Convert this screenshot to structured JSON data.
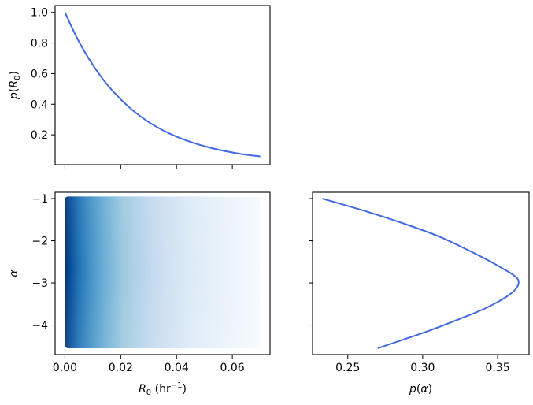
{
  "chart_data": [
    {
      "panel": "top-left",
      "type": "line",
      "xlabel": "",
      "ylabel": "p(R0)",
      "xlim": [
        -0.0035,
        0.0735
      ],
      "ylim": [
        0.005,
        1.045
      ],
      "xticks": [
        0.0,
        0.02,
        0.04,
        0.06
      ],
      "show_xtick_labels": false,
      "yticks": [
        0.2,
        0.4,
        0.6,
        0.8,
        1.0
      ],
      "ytick_labels": [
        "0.2",
        "0.4",
        "0.6",
        "0.8",
        "1.0"
      ],
      "series": [
        {
          "color": "#4169e1",
          "x": [
            0.0,
            0.005,
            0.01,
            0.015,
            0.02,
            0.025,
            0.03,
            0.035,
            0.04,
            0.045,
            0.05,
            0.055,
            0.06,
            0.065,
            0.07
          ],
          "y": [
            1.0,
            0.81,
            0.657,
            0.532,
            0.432,
            0.35,
            0.284,
            0.231,
            0.188,
            0.154,
            0.126,
            0.103,
            0.085,
            0.07,
            0.059
          ]
        }
      ],
      "grid": false
    },
    {
      "panel": "bottom-left",
      "type": "heatmap",
      "xlabel": "R0 (hr⁻¹)",
      "ylabel": "α",
      "xlim": [
        -0.0035,
        0.0735
      ],
      "ylim": [
        -4.7,
        -0.85
      ],
      "xticks": [
        0.0,
        0.02,
        0.04,
        0.06
      ],
      "xtick_labels": [
        "0.00",
        "0.02",
        "0.04",
        "0.06"
      ],
      "yticks": [
        -4,
        -3,
        -2,
        -1
      ],
      "ytick_labels": [
        "−4",
        "−3",
        "−2",
        "−1"
      ],
      "x_range": [
        0.0,
        0.07
      ],
      "y_range": [
        -4.55,
        -0.95
      ],
      "colormap": "Blues",
      "colormap_dark": "#08306b",
      "colormap_light": "#f7fbff",
      "description_values": {
        "R0_peak": 0.0,
        "alpha_peak": -2.9
      },
      "grid": false
    },
    {
      "panel": "bottom-right",
      "type": "line",
      "xlabel": "p(α)",
      "ylabel": "",
      "xlim": [
        0.2265,
        0.371
      ],
      "ylim": [
        -4.7,
        -0.85
      ],
      "xticks": [
        0.25,
        0.3,
        0.35
      ],
      "xtick_labels": [
        "0.25",
        "0.30",
        "0.35"
      ],
      "yticks": [
        -4,
        -3,
        -2,
        -1
      ],
      "show_ytick_labels": false,
      "series": [
        {
          "color": "#4169e1",
          "x": [
            0.233,
            0.262,
            0.288,
            0.311,
            0.329,
            0.343,
            0.353,
            0.36,
            0.364,
            0.362,
            0.355,
            0.342,
            0.325,
            0.303,
            0.27
          ],
          "y": [
            -1.0,
            -1.3,
            -1.6,
            -1.9,
            -2.2,
            -2.45,
            -2.65,
            -2.8,
            -2.95,
            -3.15,
            -3.35,
            -3.6,
            -3.85,
            -4.15,
            -4.55
          ]
        }
      ],
      "grid": false
    }
  ]
}
